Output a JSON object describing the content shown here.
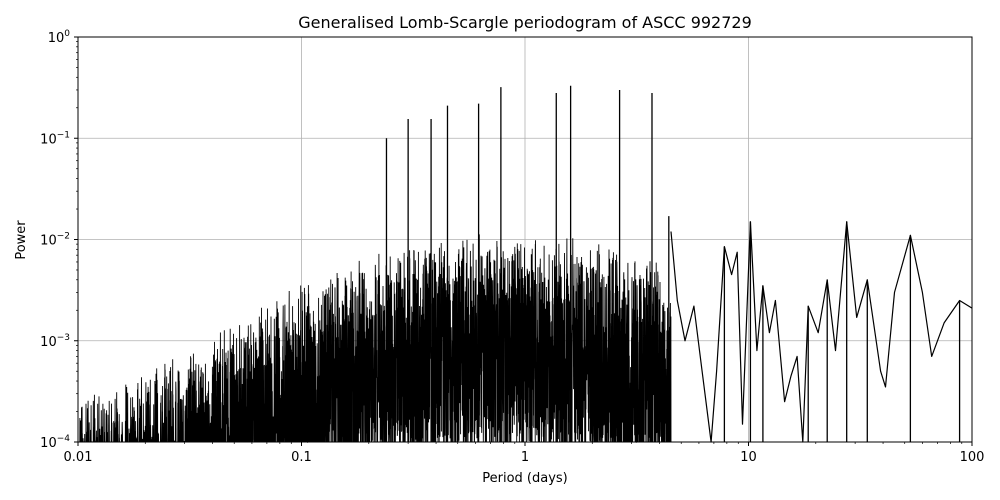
{
  "chart_data": {
    "type": "line",
    "title": "Generalised Lomb-Scargle periodogram of ASCC 992729",
    "xlabel": "Period (days)",
    "ylabel": "Power",
    "xscale": "log",
    "yscale": "log",
    "xlim": [
      0.01,
      100
    ],
    "ylim": [
      0.0001,
      1
    ],
    "grid": true,
    "x_ticks": [
      {
        "value": 0.01,
        "label": "0.01"
      },
      {
        "value": 0.1,
        "label": "0.1"
      },
      {
        "value": 1,
        "label": "1"
      },
      {
        "value": 10,
        "label": "10"
      },
      {
        "value": 100,
        "label": "100"
      }
    ],
    "y_ticks": [
      {
        "value": 0.0001,
        "mantissa": "10",
        "exp": "−4"
      },
      {
        "value": 0.001,
        "mantissa": "10",
        "exp": "−3"
      },
      {
        "value": 0.01,
        "mantissa": "10",
        "exp": "−2"
      },
      {
        "value": 0.1,
        "mantissa": "10",
        "exp": "−1"
      },
      {
        "value": 1,
        "mantissa": "10",
        "exp": "0"
      }
    ],
    "line_color": "#000000",
    "grid_color": "#b0b0b0",
    "peaks": [
      {
        "period": 0.24,
        "power": 0.1
      },
      {
        "period": 0.3,
        "power": 0.155
      },
      {
        "period": 0.38,
        "power": 0.155
      },
      {
        "period": 0.45,
        "power": 0.21
      },
      {
        "period": 0.62,
        "power": 0.22
      },
      {
        "period": 0.78,
        "power": 0.32
      },
      {
        "period": 1.38,
        "power": 0.28
      },
      {
        "period": 1.6,
        "power": 0.33
      },
      {
        "period": 2.65,
        "power": 0.3
      },
      {
        "period": 3.7,
        "power": 0.28
      },
      {
        "period": 4.4,
        "power": 0.017
      },
      {
        "period": 7.8,
        "power": 0.0085
      },
      {
        "period": 10.2,
        "power": 0.015
      },
      {
        "period": 11.6,
        "power": 0.0035
      },
      {
        "period": 18.5,
        "power": 0.0022
      },
      {
        "period": 22.5,
        "power": 0.004
      },
      {
        "period": 27.5,
        "power": 0.015
      },
      {
        "period": 34,
        "power": 0.004
      },
      {
        "period": 53,
        "power": 0.011
      },
      {
        "period": 88,
        "power": 0.0025
      }
    ],
    "smooth_curve": [
      [
        4.5,
        0.012
      ],
      [
        4.8,
        0.0025
      ],
      [
        5.2,
        0.001
      ],
      [
        5.7,
        0.0022
      ],
      [
        6.2,
        0.0005
      ],
      [
        6.8,
        8e-05
      ],
      [
        7.2,
        0.0005
      ],
      [
        7.8,
        0.0085
      ],
      [
        8.4,
        0.0045
      ],
      [
        8.9,
        0.0075
      ],
      [
        9.4,
        0.00015
      ],
      [
        10.2,
        0.015
      ],
      [
        10.9,
        0.0008
      ],
      [
        11.6,
        0.0035
      ],
      [
        12.4,
        0.0012
      ],
      [
        13.2,
        0.0025
      ],
      [
        14.5,
        0.00025
      ],
      [
        15.5,
        0.00045
      ],
      [
        16.5,
        0.0007
      ],
      [
        17.5,
        5e-05
      ],
      [
        18.5,
        0.0022
      ],
      [
        20.5,
        0.0012
      ],
      [
        22.5,
        0.004
      ],
      [
        24.5,
        0.0008
      ],
      [
        27.5,
        0.015
      ],
      [
        30.5,
        0.0017
      ],
      [
        34,
        0.004
      ],
      [
        39,
        0.0005
      ],
      [
        41,
        0.00035
      ],
      [
        45,
        0.003
      ],
      [
        53,
        0.011
      ],
      [
        60,
        0.003
      ],
      [
        66,
        0.0007
      ],
      [
        75,
        0.0015
      ],
      [
        88,
        0.0025
      ],
      [
        100,
        0.0021
      ]
    ]
  }
}
